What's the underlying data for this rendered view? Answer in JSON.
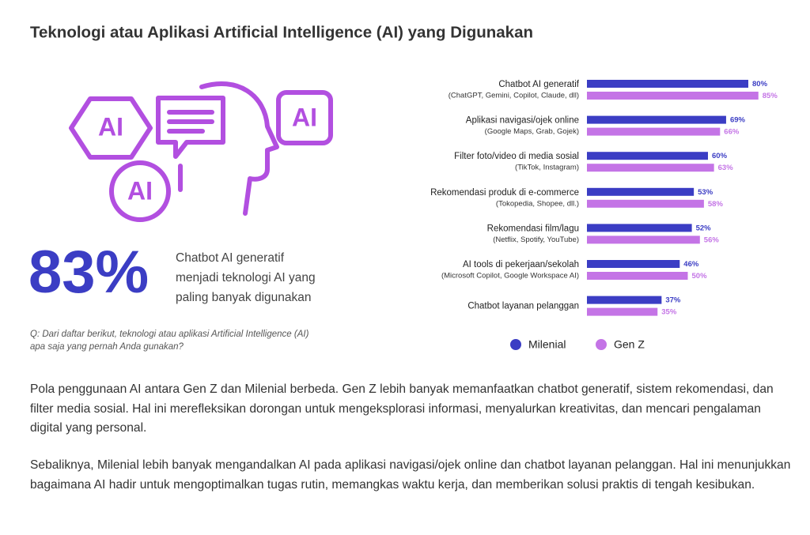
{
  "title": "Teknologi atau Aplikasi Artificial Intelligence (AI) yang Digunakan",
  "icon_labels": [
    "AI",
    "AI",
    "AI"
  ],
  "highlight": {
    "value": "83%",
    "lines": [
      "Chatbot AI generatif",
      "menjadi teknologi AI yang",
      "paling banyak digunakan"
    ]
  },
  "question": [
    "Q: Dari daftar berikut, teknologi atau aplikasi Artificial Intelligence (AI)",
    "apa saja yang pernah Anda gunakan?"
  ],
  "chart_data": {
    "type": "bar",
    "orientation": "horizontal",
    "categories": [
      "Chatbot AI generatif",
      "Aplikasi navigasi/ojek online",
      "Filter foto/video di media sosial",
      "Rekomendasi produk di e-commerce",
      "Rekomendasi film/lagu",
      "AI tools di pekerjaan/sekolah",
      "Chatbot layanan pelanggan"
    ],
    "category_details": [
      "(ChatGPT, Gemini, Copilot, Claude, dll)",
      "(Google Maps, Grab, Gojek)",
      "(TikTok, Instagram)",
      "(Tokopedia, Shopee, dll.)",
      "(Netflix, Spotify, YouTube)",
      "(Microsoft Copilot, Google Workspace AI)",
      null
    ],
    "series": [
      {
        "name": "Milenial",
        "color": "#3b3dc4",
        "values": [
          80,
          69,
          60,
          53,
          52,
          46,
          37
        ],
        "value_labels": [
          "80%",
          "69%",
          "60%",
          "53%",
          "52%",
          "46%",
          "37%"
        ]
      },
      {
        "name": "Gen Z",
        "color": "#c474e6",
        "values": [
          85,
          66,
          63,
          58,
          56,
          50,
          35
        ],
        "value_labels": [
          "85%",
          "66%",
          "63%",
          "58%",
          "56%",
          "50%",
          "35%"
        ]
      }
    ],
    "legend": "bottom"
  },
  "paragraphs": [
    "Pola penggunaan AI antara Gen Z dan Milenial berbeda. Gen Z lebih banyak memanfaatkan chatbot generatif, sistem rekomendasi, dan filter media sosial. Hal ini merefleksikan dorongan untuk mengeksplorasi informasi, menyalurkan kreativitas, dan mencari pengalaman digital yang personal.",
    "Sebaliknya, Milenial lebih banyak mengandalkan AI pada aplikasi navigasi/ojek online dan chatbot layanan pelanggan. Hal ini menunjukkan bagaimana AI hadir untuk mengoptimalkan tugas rutin, memangkas waktu kerja, dan memberikan solusi praktis di tengah kesibukan."
  ]
}
